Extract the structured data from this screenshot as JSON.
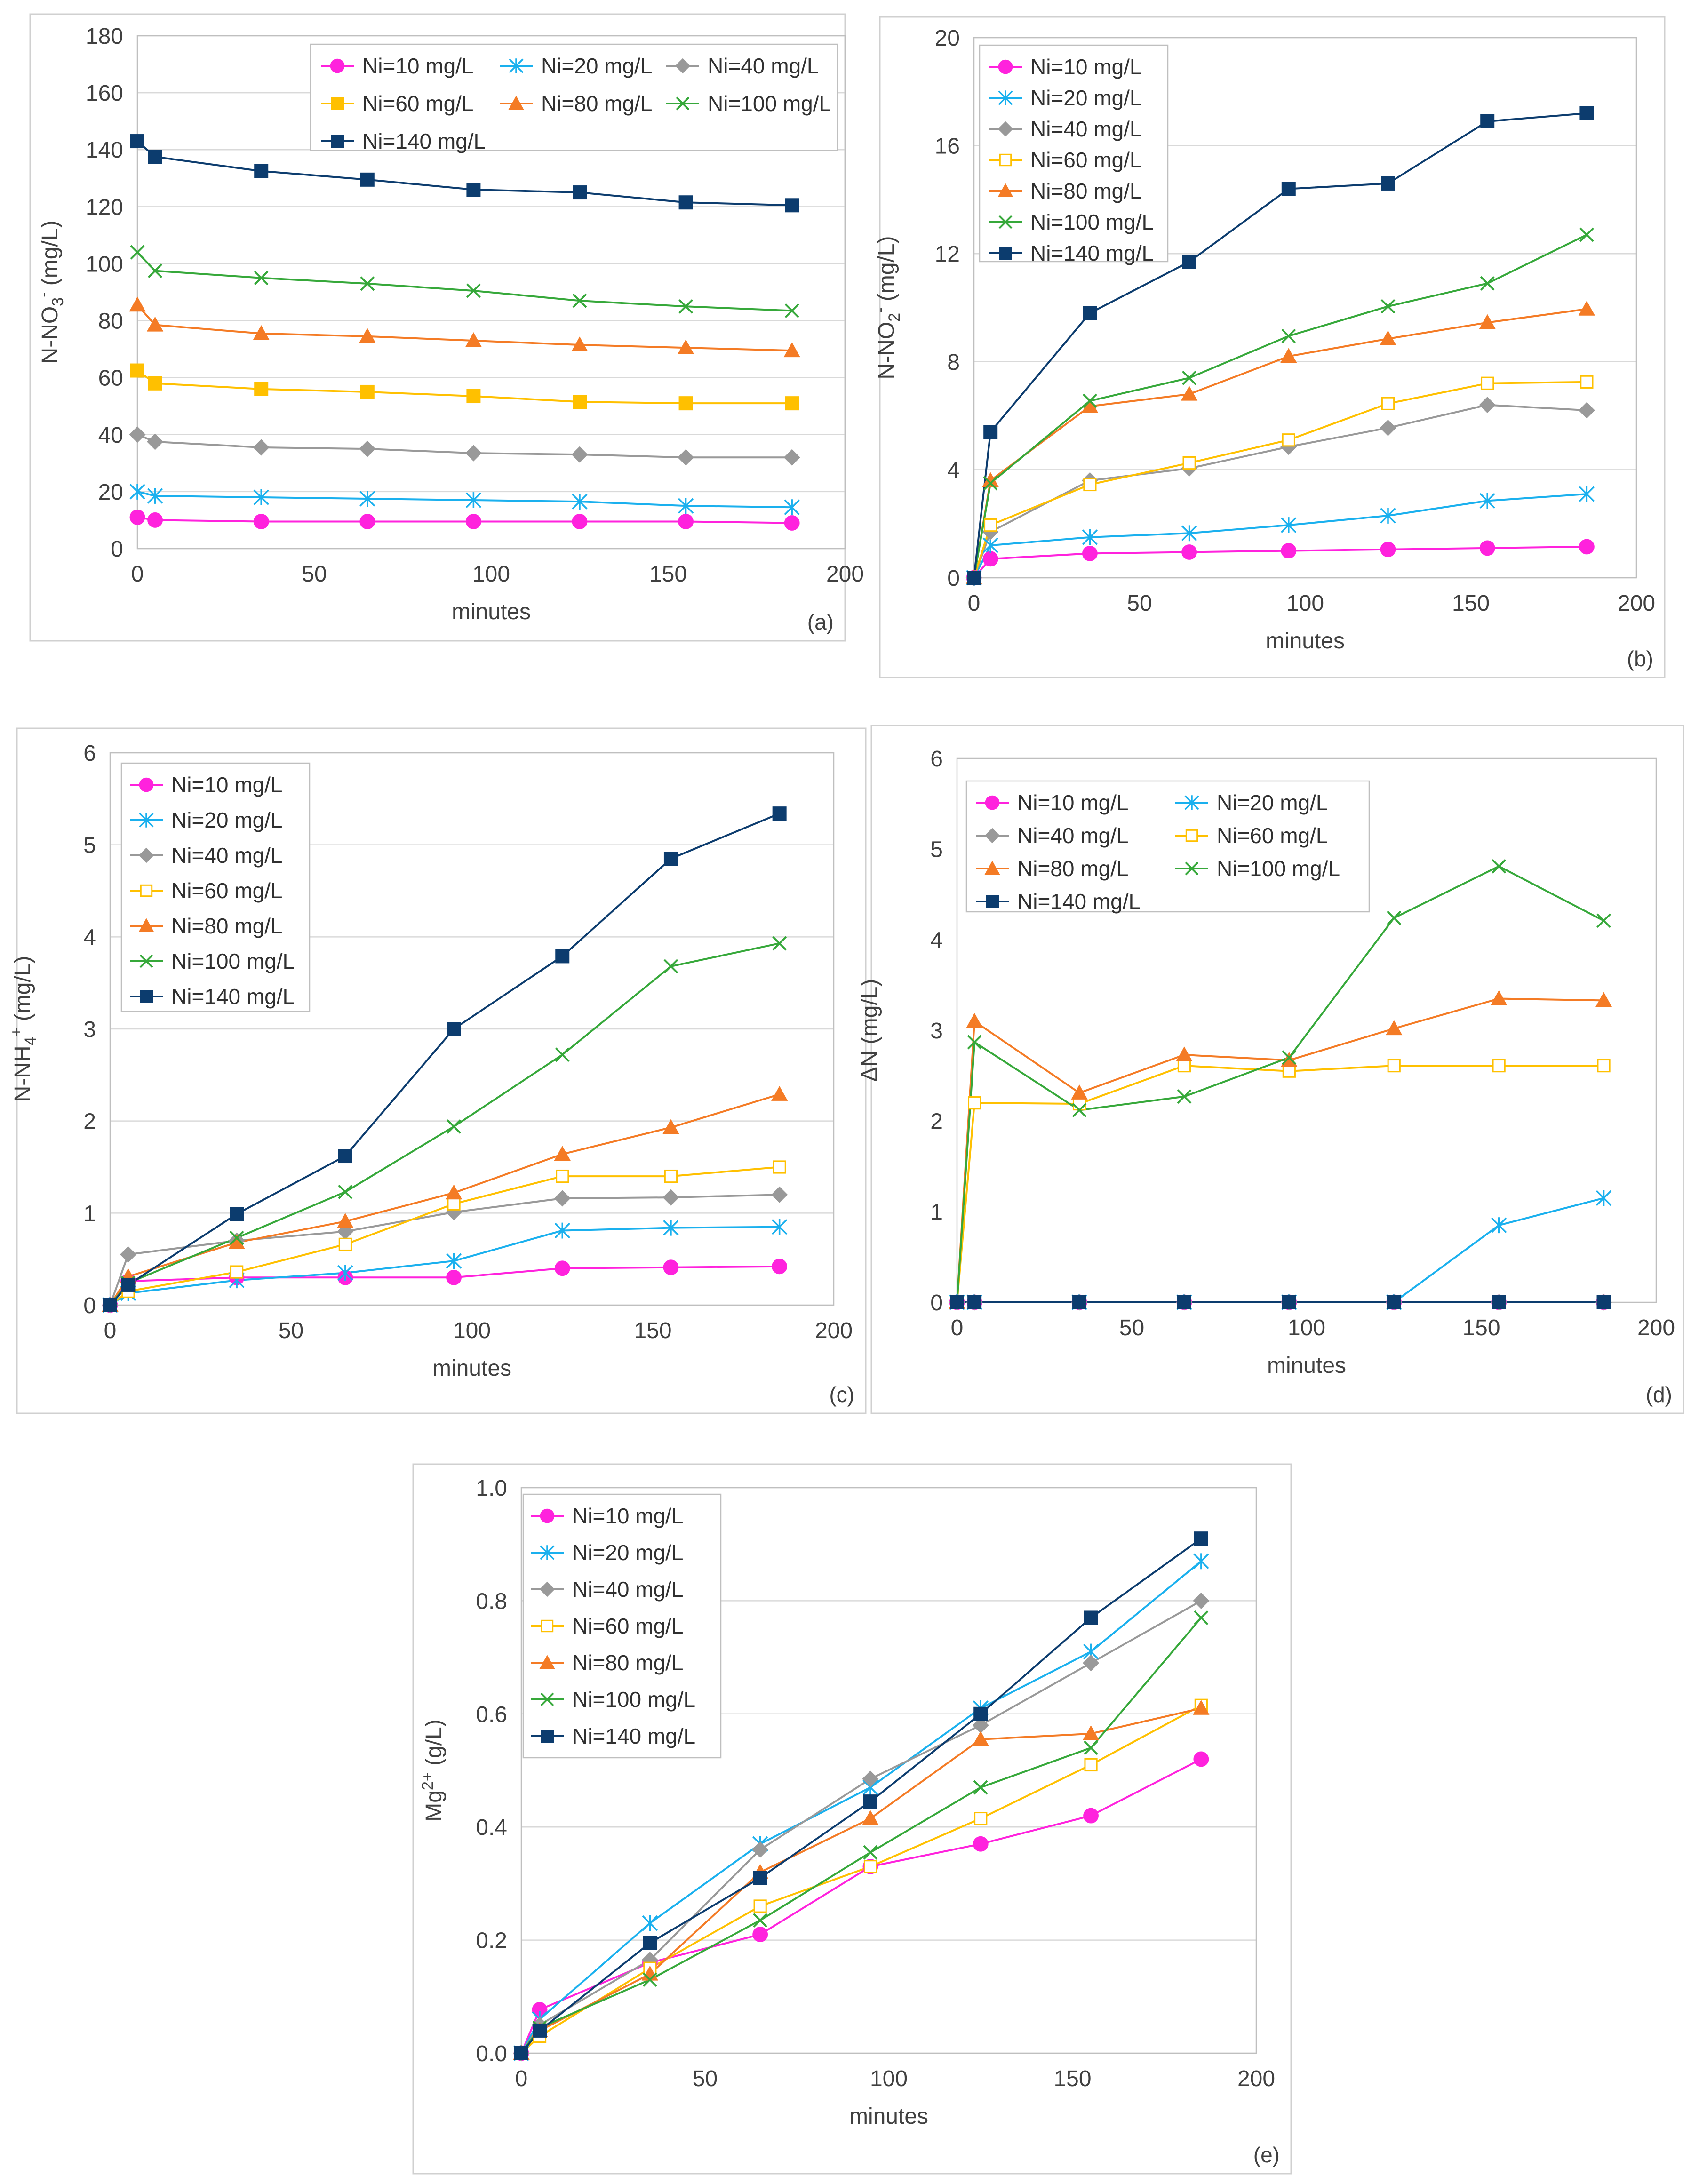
{
  "series_colors": [
    "#ff22dd",
    "#1ab0ee",
    "#999999",
    "#ffc000",
    "#f47b25",
    "#36a83a",
    "#0c3c6e"
  ],
  "series_markers": [
    [
      "circle",
      "star",
      "diamond",
      "square",
      "triangle",
      "x",
      "square"
    ],
    [
      "circle",
      "star",
      "diamond",
      "square-open",
      "triangle",
      "x",
      "square"
    ],
    [
      "circle",
      "star",
      "diamond",
      "square-open",
      "triangle",
      "x",
      "square"
    ],
    [
      "circle",
      "star",
      "diamond",
      "square-open",
      "triangle",
      "x",
      "square"
    ],
    [
      "circle",
      "star",
      "diamond",
      "square-open",
      "triangle",
      "x",
      "square"
    ]
  ],
  "chart_data": [
    {
      "type": "line",
      "panel_label": "(a)",
      "xlabel": "minutes",
      "ylabel": "N-NO3- (mg/L)",
      "ylabel_parts": [
        "N-NO",
        "3",
        "-",
        " (mg/L)"
      ],
      "xlim": [
        0,
        200
      ],
      "ylim": [
        0,
        180
      ],
      "xticks": [
        0,
        50,
        100,
        150,
        200
      ],
      "yticks": [
        0,
        20,
        40,
        60,
        80,
        100,
        120,
        140,
        160,
        180
      ],
      "grid": true,
      "legend_position": "top-right",
      "x": [
        0,
        5,
        35,
        65,
        95,
        125,
        155,
        185
      ],
      "series": [
        {
          "name": "Ni=10 mg/L",
          "values": [
            11,
            10,
            9.5,
            9.5,
            9.5,
            9.5,
            9.5,
            9
          ]
        },
        {
          "name": "Ni=20 mg/L",
          "values": [
            20,
            18.5,
            18,
            17.5,
            17,
            16.5,
            15,
            14.5
          ]
        },
        {
          "name": "Ni=40 mg/L",
          "values": [
            40,
            37.5,
            35.5,
            35,
            33.5,
            33,
            32,
            32
          ]
        },
        {
          "name": "Ni=60 mg/L",
          "values": [
            62.5,
            58,
            56,
            55,
            53.5,
            51.5,
            51,
            51
          ]
        },
        {
          "name": "Ni=80 mg/L",
          "values": [
            85.5,
            78.5,
            75.5,
            74.5,
            73,
            71.5,
            70.5,
            69.5
          ]
        },
        {
          "name": "Ni=100 mg/L",
          "values": [
            104,
            97.5,
            95,
            93,
            90.5,
            87,
            85,
            83.5
          ]
        },
        {
          "name": "Ni=140 mg/L",
          "values": [
            143,
            137.5,
            132.5,
            129.5,
            126,
            125,
            121.5,
            120.5
          ]
        }
      ]
    },
    {
      "type": "line",
      "panel_label": "(b)",
      "xlabel": "minutes",
      "ylabel": "N-NO2- (mg/L)",
      "ylabel_parts": [
        "N-NO",
        "2",
        "-",
        " (mg/L)"
      ],
      "xlim": [
        0,
        200
      ],
      "ylim": [
        0,
        20
      ],
      "xticks": [
        0,
        50,
        100,
        150,
        200
      ],
      "yticks": [
        0,
        4,
        8,
        12,
        16,
        20
      ],
      "grid": true,
      "legend_position": "top-left",
      "x": [
        0,
        5,
        35,
        65,
        95,
        125,
        155,
        185
      ],
      "series": [
        {
          "name": "Ni=10 mg/L",
          "values": [
            0,
            0.7,
            0.9,
            0.95,
            1.0,
            1.05,
            1.1,
            1.15
          ]
        },
        {
          "name": "Ni=20 mg/L",
          "values": [
            0,
            1.2,
            1.5,
            1.65,
            1.95,
            2.3,
            2.85,
            3.1
          ]
        },
        {
          "name": "Ni=40 mg/L",
          "values": [
            0,
            1.7,
            3.6,
            4.05,
            4.85,
            5.55,
            6.4,
            6.2
          ]
        },
        {
          "name": "Ni=60 mg/L",
          "values": [
            0,
            1.95,
            3.45,
            4.25,
            5.1,
            6.45,
            7.2,
            7.25
          ]
        },
        {
          "name": "Ni=80 mg/L",
          "values": [
            0,
            3.6,
            6.35,
            6.8,
            8.2,
            8.85,
            9.45,
            9.95
          ]
        },
        {
          "name": "Ni=100 mg/L",
          "values": [
            0,
            3.5,
            6.55,
            7.4,
            8.95,
            10.05,
            10.9,
            12.7
          ]
        },
        {
          "name": "Ni=140 mg/L",
          "values": [
            0,
            5.4,
            9.8,
            11.7,
            14.4,
            14.6,
            16.9,
            17.2
          ]
        }
      ]
    },
    {
      "type": "line",
      "panel_label": "(c)",
      "xlabel": "minutes",
      "ylabel": "N-NH4+ (mg/L)",
      "ylabel_parts": [
        "N-NH",
        "4",
        "+",
        " (mg/L)"
      ],
      "xlim": [
        0,
        200
      ],
      "ylim": [
        0,
        6
      ],
      "xticks": [
        0,
        50,
        100,
        150,
        200
      ],
      "yticks": [
        0,
        1,
        2,
        3,
        4,
        5,
        6
      ],
      "grid": true,
      "legend_position": "top-left",
      "x": [
        0,
        5,
        35,
        65,
        95,
        125,
        155,
        185
      ],
      "series": [
        {
          "name": "Ni=10 mg/L",
          "values": [
            0,
            0.26,
            0.3,
            0.3,
            0.3,
            0.4,
            0.41,
            0.42
          ]
        },
        {
          "name": "Ni=20 mg/L",
          "values": [
            0,
            0.13,
            0.27,
            0.35,
            0.48,
            0.81,
            0.84,
            0.85
          ]
        },
        {
          "name": "Ni=40 mg/L",
          "values": [
            0,
            0.55,
            0.7,
            0.8,
            1.01,
            1.16,
            1.17,
            1.2
          ]
        },
        {
          "name": "Ni=60 mg/L",
          "values": [
            0,
            0.15,
            0.36,
            0.66,
            1.1,
            1.4,
            1.4,
            1.5
          ]
        },
        {
          "name": "Ni=80 mg/L",
          "values": [
            0,
            0.31,
            0.68,
            0.91,
            1.22,
            1.64,
            1.93,
            2.29
          ]
        },
        {
          "name": "Ni=100 mg/L",
          "values": [
            0,
            0.24,
            0.73,
            1.23,
            1.94,
            2.72,
            3.68,
            3.93
          ]
        },
        {
          "name": "Ni=140 mg/L",
          "values": [
            0,
            0.22,
            0.99,
            1.62,
            3.0,
            3.79,
            4.85,
            5.34
          ]
        }
      ]
    },
    {
      "type": "line",
      "panel_label": "(d)",
      "xlabel": "minutes",
      "ylabel": "ΔN (mg/L)",
      "ylabel_parts": [
        "ΔN (mg/L)"
      ],
      "xlim": [
        0,
        200
      ],
      "ylim": [
        0,
        6
      ],
      "xticks": [
        0,
        50,
        100,
        150,
        200
      ],
      "yticks": [
        0,
        1,
        2,
        3,
        4,
        5,
        6
      ],
      "grid": false,
      "legend_position": "top-left",
      "legend_columns": 2,
      "x": [
        0,
        5,
        35,
        65,
        95,
        125,
        155,
        185
      ],
      "series": [
        {
          "name": "Ni=10 mg/L",
          "values": [
            0,
            0,
            0,
            0,
            0,
            0,
            0,
            0
          ]
        },
        {
          "name": "Ni=20 mg/L",
          "values": [
            0,
            0,
            0,
            0,
            0,
            0,
            0.85,
            1.15
          ]
        },
        {
          "name": "Ni=40 mg/L",
          "values": [
            0,
            0,
            0,
            0,
            0,
            0,
            0,
            0
          ]
        },
        {
          "name": "Ni=60 mg/L",
          "values": [
            0,
            2.2,
            2.19,
            2.61,
            2.55,
            2.61,
            2.61,
            2.61
          ]
        },
        {
          "name": "Ni=80 mg/L",
          "values": [
            0,
            3.1,
            2.31,
            2.73,
            2.67,
            3.02,
            3.35,
            3.33
          ]
        },
        {
          "name": "Ni=100 mg/L",
          "values": [
            0,
            2.87,
            2.12,
            2.27,
            2.7,
            4.24,
            4.81,
            4.21
          ]
        },
        {
          "name": "Ni=140 mg/L",
          "values": [
            0,
            0,
            0,
            0,
            0,
            0,
            0,
            0
          ]
        }
      ]
    },
    {
      "type": "line",
      "panel_label": "(e)",
      "xlabel": "minutes",
      "ylabel": "Mg2+ (g/L)",
      "ylabel_parts": [
        "Mg",
        "",
        "2+",
        " (g/L)"
      ],
      "xlim": [
        0,
        200
      ],
      "ylim": [
        0,
        1
      ],
      "xticks": [
        0,
        50,
        100,
        150,
        200
      ],
      "yticks": [
        0,
        0.2,
        0.4,
        0.6,
        0.8,
        1.0
      ],
      "ytick_labels": [
        "0.0",
        "0.2",
        "0.4",
        "0.6",
        "0.8",
        "1.0"
      ],
      "grid": true,
      "legend_position": "top-left",
      "x": [
        0,
        5,
        35,
        65,
        95,
        125,
        155,
        185
      ],
      "series": [
        {
          "name": "Ni=10 mg/L",
          "values": [
            0,
            0.077,
            0.16,
            0.21,
            0.33,
            0.37,
            0.42,
            0.52
          ]
        },
        {
          "name": "Ni=20 mg/L",
          "values": [
            0,
            0.06,
            0.23,
            0.37,
            0.47,
            0.61,
            0.71,
            0.87
          ]
        },
        {
          "name": "Ni=40 mg/L",
          "values": [
            0,
            0.05,
            0.165,
            0.36,
            0.485,
            0.58,
            0.69,
            0.8
          ]
        },
        {
          "name": "Ni=60 mg/L",
          "values": [
            0,
            0.03,
            0.15,
            0.26,
            0.33,
            0.415,
            0.51,
            0.615
          ]
        },
        {
          "name": "Ni=80 mg/L",
          "values": [
            0,
            0.04,
            0.14,
            0.32,
            0.415,
            0.555,
            0.565,
            0.61
          ]
        },
        {
          "name": "Ni=100 mg/L",
          "values": [
            0,
            0.045,
            0.13,
            0.235,
            0.355,
            0.47,
            0.54,
            0.77
          ]
        },
        {
          "name": "Ni=140 mg/L",
          "values": [
            0,
            0.04,
            0.195,
            0.31,
            0.445,
            0.6,
            0.77,
            0.91
          ]
        }
      ]
    }
  ]
}
